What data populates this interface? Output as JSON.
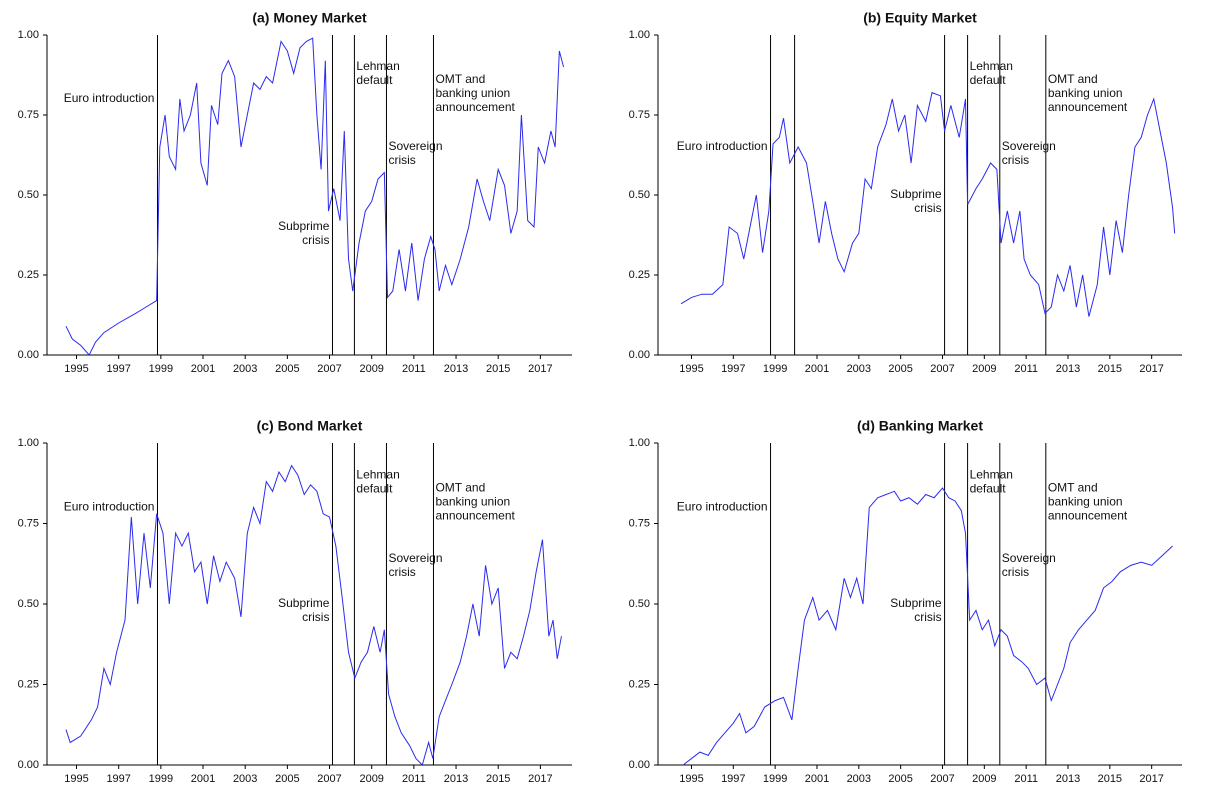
{
  "chart_data": [
    {
      "type": "line",
      "title": "(a) Money Market",
      "color": "#2b2bf0",
      "xlim": [
        1993.6,
        2018.5
      ],
      "ylim": [
        0,
        1
      ],
      "xticks": [
        1995,
        1997,
        1999,
        2001,
        2003,
        2005,
        2007,
        2009,
        2011,
        2013,
        2015,
        2017
      ],
      "yticks": [
        {
          "value": 0,
          "label": "0.00"
        },
        0.25,
        {
          "value": 0.5,
          "label": "0.50"
        },
        0.75,
        {
          "value": 1,
          "label": "1.00"
        }
      ],
      "events": [
        {
          "x": 1998.84,
          "label": [
            "Euro introduction"
          ]
        },
        {
          "x": 2007.14,
          "label": [
            "Subprime",
            "crisis"
          ]
        },
        {
          "x": 2008.18,
          "label": [
            "Lehman",
            "default"
          ]
        },
        {
          "x": 2009.7,
          "label": [
            "Sovereign",
            "crisis"
          ]
        },
        {
          "x": 2011.93,
          "label": [
            "OMT and",
            "banking union",
            "announcement"
          ]
        }
      ],
      "x": [
        1994.5,
        1994.8,
        1995.2,
        1995.6,
        1995.9,
        1996.3,
        1997,
        1997.8,
        1998.3,
        1998.8,
        1998.95,
        1999.2,
        1999.4,
        1999.7,
        1999.9,
        2000.1,
        2000.4,
        2000.7,
        2000.9,
        2001.2,
        2001.4,
        2001.7,
        2001.9,
        2002.2,
        2002.5,
        2002.8,
        2003.1,
        2003.4,
        2003.7,
        2004,
        2004.3,
        2004.7,
        2005,
        2005.3,
        2005.6,
        2005.9,
        2006.2,
        2006.4,
        2006.6,
        2006.8,
        2006.95,
        2007.2,
        2007.5,
        2007.7,
        2007.9,
        2008.1,
        2008.4,
        2008.7,
        2009,
        2009.3,
        2009.6,
        2009.75,
        2010,
        2010.3,
        2010.6,
        2010.9,
        2011.2,
        2011.5,
        2011.8,
        2012,
        2012.2,
        2012.5,
        2012.8,
        2013.2,
        2013.6,
        2014,
        2014.3,
        2014.6,
        2015,
        2015.3,
        2015.6,
        2015.9,
        2016.1,
        2016.4,
        2016.7,
        2016.9,
        2017.2,
        2017.5,
        2017.7,
        2017.9,
        2018.1
      ],
      "values": [
        0.09,
        0.05,
        0.03,
        0,
        0.04,
        0.07,
        0.1,
        0.13,
        0.15,
        0.17,
        0.65,
        0.75,
        0.62,
        0.58,
        0.8,
        0.7,
        0.75,
        0.85,
        0.6,
        0.53,
        0.78,
        0.72,
        0.88,
        0.92,
        0.87,
        0.65,
        0.75,
        0.85,
        0.83,
        0.87,
        0.85,
        0.98,
        0.95,
        0.88,
        0.96,
        0.98,
        0.99,
        0.75,
        0.58,
        0.92,
        0.45,
        0.52,
        0.42,
        0.7,
        0.3,
        0.2,
        0.35,
        0.45,
        0.48,
        0.55,
        0.57,
        0.18,
        0.2,
        0.33,
        0.2,
        0.35,
        0.17,
        0.3,
        0.37,
        0.33,
        0.2,
        0.28,
        0.22,
        0.3,
        0.4,
        0.55,
        0.48,
        0.42,
        0.58,
        0.53,
        0.38,
        0.45,
        0.75,
        0.42,
        0.4,
        0.65,
        0.6,
        0.7,
        0.65,
        0.95,
        0.9
      ]
    },
    {
      "type": "line",
      "title": "(b) Equity Market",
      "color": "#2b2bf0",
      "xlim": [
        1993.4,
        2018.45
      ],
      "ylim": [
        0,
        1
      ],
      "xticks": [
        1995,
        1997,
        1999,
        2001,
        2003,
        2005,
        2007,
        2009,
        2011,
        2013,
        2015,
        2017
      ],
      "yticks": [
        {
          "value": 0,
          "label": "0.00"
        },
        0.25,
        {
          "value": 0.5,
          "label": "0.50"
        },
        0.75,
        {
          "value": 1,
          "label": "1.00"
        }
      ],
      "events": [
        {
          "x": 1998.78,
          "label": [
            "Euro introduction"
          ]
        },
        {
          "x": 1999.93
        },
        {
          "x": 2007.1,
          "label": [
            "Subprime",
            "crisis"
          ]
        },
        {
          "x": 2008.2,
          "label": [
            "Lehman",
            "default"
          ]
        },
        {
          "x": 2009.74,
          "label": [
            "Sovereign",
            "crisis"
          ]
        },
        {
          "x": 2011.94,
          "label": [
            "OMT and",
            "banking union",
            "announcement"
          ]
        }
      ],
      "x": [
        1994.5,
        1995,
        1995.5,
        1996,
        1996.5,
        1996.8,
        1997.2,
        1997.5,
        1997.8,
        1998.1,
        1998.4,
        1998.7,
        1998.9,
        1999.2,
        1999.4,
        1999.7,
        2000.1,
        2000.5,
        2000.8,
        2001.1,
        2001.4,
        2001.7,
        2002,
        2002.3,
        2002.7,
        2003,
        2003.3,
        2003.6,
        2003.9,
        2004.3,
        2004.6,
        2004.9,
        2005.2,
        2005.5,
        2005.8,
        2006.2,
        2006.5,
        2006.9,
        2007.1,
        2007.4,
        2007.8,
        2008.1,
        2008.2,
        2008.6,
        2008.9,
        2009.3,
        2009.6,
        2009.8,
        2010.1,
        2010.4,
        2010.7,
        2010.9,
        2011.2,
        2011.6,
        2011.9,
        2012.2,
        2012.5,
        2012.8,
        2013.1,
        2013.4,
        2013.7,
        2014,
        2014.4,
        2014.7,
        2015,
        2015.3,
        2015.6,
        2015.9,
        2016.2,
        2016.5,
        2016.8,
        2017.1,
        2017.4,
        2017.7,
        2018,
        2018.1
      ],
      "values": [
        0.16,
        0.18,
        0.19,
        0.19,
        0.22,
        0.4,
        0.38,
        0.3,
        0.4,
        0.5,
        0.32,
        0.45,
        0.66,
        0.68,
        0.74,
        0.6,
        0.65,
        0.6,
        0.48,
        0.35,
        0.48,
        0.38,
        0.3,
        0.26,
        0.35,
        0.38,
        0.55,
        0.52,
        0.65,
        0.72,
        0.8,
        0.7,
        0.75,
        0.6,
        0.78,
        0.73,
        0.82,
        0.81,
        0.7,
        0.78,
        0.68,
        0.8,
        0.47,
        0.52,
        0.55,
        0.6,
        0.58,
        0.35,
        0.45,
        0.35,
        0.45,
        0.3,
        0.25,
        0.22,
        0.13,
        0.15,
        0.25,
        0.2,
        0.28,
        0.15,
        0.25,
        0.12,
        0.22,
        0.4,
        0.25,
        0.42,
        0.32,
        0.5,
        0.65,
        0.68,
        0.75,
        0.8,
        0.7,
        0.6,
        0.46,
        0.38
      ]
    },
    {
      "type": "line",
      "title": "(c) Bond Market",
      "color": "#2b2bf0",
      "xlim": [
        1993.6,
        2018.5
      ],
      "ylim": [
        0,
        1
      ],
      "xticks": [
        1995,
        1997,
        1999,
        2001,
        2003,
        2005,
        2007,
        2009,
        2011,
        2013,
        2015,
        2017
      ],
      "yticks": [
        {
          "value": 0,
          "label": "0.00"
        },
        0.25,
        {
          "value": 0.5,
          "label": "0.50"
        },
        0.75,
        {
          "value": 1,
          "label": "1.00"
        }
      ],
      "events": [
        {
          "x": 1998.84,
          "label": [
            "Euro introduction"
          ]
        },
        {
          "x": 2007.14,
          "label": [
            "Subprime",
            "crisis"
          ]
        },
        {
          "x": 2008.18,
          "label": [
            "Lehman",
            "default"
          ]
        },
        {
          "x": 2009.7,
          "label": [
            "Sovereign",
            "crisis"
          ]
        },
        {
          "x": 2011.93,
          "label": [
            "OMT and",
            "banking union",
            "announcement"
          ]
        }
      ],
      "x": [
        1994.5,
        1994.7,
        1995.2,
        1995.7,
        1996,
        1996.3,
        1996.6,
        1996.9,
        1997.3,
        1997.6,
        1997.9,
        1998.2,
        1998.5,
        1998.8,
        1999.1,
        1999.4,
        1999.7,
        2000,
        2000.3,
        2000.6,
        2000.9,
        2001.2,
        2001.5,
        2001.8,
        2002.1,
        2002.5,
        2002.8,
        2003.1,
        2003.4,
        2003.7,
        2004,
        2004.3,
        2004.6,
        2004.9,
        2005.2,
        2005.5,
        2005.8,
        2006.1,
        2006.4,
        2006.7,
        2007,
        2007.3,
        2007.6,
        2007.9,
        2008.2,
        2008.5,
        2008.8,
        2009.1,
        2009.4,
        2009.6,
        2009.8,
        2010.1,
        2010.4,
        2010.8,
        2011.1,
        2011.4,
        2011.7,
        2011.9,
        2012.2,
        2012.5,
        2012.8,
        2013.2,
        2013.5,
        2013.8,
        2014.1,
        2014.4,
        2014.7,
        2015,
        2015.3,
        2015.6,
        2015.9,
        2016.2,
        2016.5,
        2016.8,
        2017.1,
        2017.4,
        2017.6,
        2017.8,
        2018
      ],
      "values": [
        0.11,
        0.07,
        0.09,
        0.14,
        0.18,
        0.3,
        0.25,
        0.35,
        0.45,
        0.77,
        0.5,
        0.72,
        0.55,
        0.78,
        0.72,
        0.5,
        0.72,
        0.68,
        0.72,
        0.6,
        0.63,
        0.5,
        0.65,
        0.57,
        0.63,
        0.58,
        0.46,
        0.72,
        0.8,
        0.75,
        0.88,
        0.85,
        0.91,
        0.88,
        0.93,
        0.9,
        0.84,
        0.87,
        0.85,
        0.78,
        0.77,
        0.68,
        0.52,
        0.35,
        0.27,
        0.32,
        0.35,
        0.43,
        0.35,
        0.42,
        0.22,
        0.15,
        0.1,
        0.06,
        0.02,
        0,
        0.07,
        0.02,
        0.15,
        0.2,
        0.25,
        0.32,
        0.4,
        0.5,
        0.4,
        0.62,
        0.5,
        0.55,
        0.3,
        0.35,
        0.33,
        0.4,
        0.48,
        0.6,
        0.7,
        0.4,
        0.45,
        0.33,
        0.4
      ]
    },
    {
      "type": "line",
      "title": "(d) Banking Market",
      "color": "#2b2bf0",
      "xlim": [
        1993.4,
        2018.45
      ],
      "ylim": [
        0,
        1
      ],
      "xticks": [
        1995,
        1997,
        1999,
        2001,
        2003,
        2005,
        2007,
        2009,
        2011,
        2013,
        2015,
        2017
      ],
      "yticks": [
        {
          "value": 0,
          "label": "0.00"
        },
        0.25,
        {
          "value": 0.5,
          "label": "0.50"
        },
        0.75,
        {
          "value": 1,
          "label": "1.00"
        }
      ],
      "events": [
        {
          "x": 1998.78,
          "label": [
            "Euro introduction"
          ]
        },
        {
          "x": 2007.1,
          "label": [
            "Subprime",
            "crisis"
          ]
        },
        {
          "x": 2008.2,
          "label": [
            "Lehman",
            "default"
          ]
        },
        {
          "x": 2009.74,
          "label": [
            "Sovereign",
            "crisis"
          ]
        },
        {
          "x": 2011.94,
          "label": [
            "OMT and",
            "banking union",
            "announcement"
          ]
        }
      ],
      "x": [
        1994.6,
        1995,
        1995.4,
        1995.8,
        1996.2,
        1996.6,
        1997,
        1997.3,
        1997.6,
        1998,
        1998.5,
        1999,
        1999.4,
        1999.8,
        2000.1,
        2000.4,
        2000.8,
        2001.1,
        2001.5,
        2001.9,
        2002.3,
        2002.6,
        2002.9,
        2003.2,
        2003.5,
        2003.9,
        2004.3,
        2004.7,
        2005,
        2005.4,
        2005.8,
        2006.2,
        2006.6,
        2007,
        2007.3,
        2007.6,
        2007.9,
        2008.1,
        2008.3,
        2008.6,
        2008.9,
        2009.2,
        2009.5,
        2009.8,
        2010.1,
        2010.4,
        2010.8,
        2011.1,
        2011.5,
        2011.9,
        2012.2,
        2012.5,
        2012.8,
        2013.1,
        2013.5,
        2013.9,
        2014.3,
        2014.7,
        2015.1,
        2015.5,
        2016,
        2016.5,
        2017,
        2017.5,
        2018
      ],
      "values": [
        0,
        0.02,
        0.04,
        0.03,
        0.07,
        0.1,
        0.13,
        0.16,
        0.1,
        0.12,
        0.18,
        0.2,
        0.21,
        0.14,
        0.3,
        0.45,
        0.52,
        0.45,
        0.48,
        0.42,
        0.58,
        0.52,
        0.58,
        0.5,
        0.8,
        0.83,
        0.84,
        0.85,
        0.82,
        0.83,
        0.81,
        0.84,
        0.83,
        0.86,
        0.83,
        0.82,
        0.79,
        0.72,
        0.45,
        0.48,
        0.42,
        0.45,
        0.37,
        0.42,
        0.4,
        0.34,
        0.32,
        0.3,
        0.25,
        0.27,
        0.2,
        0.25,
        0.3,
        0.38,
        0.42,
        0.45,
        0.48,
        0.55,
        0.57,
        0.6,
        0.62,
        0.63,
        0.62,
        0.65,
        0.68
      ]
    }
  ]
}
